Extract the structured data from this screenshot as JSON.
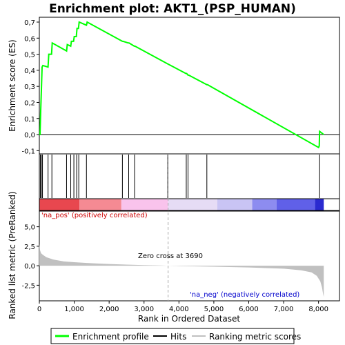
{
  "chart_data": {
    "type": "line",
    "title": "Enrichment plot: AKT1_(PSP_HUMAN)",
    "top_panel": {
      "ylabel": "Enrichment score (ES)",
      "ylim": [
        -0.12,
        0.73
      ],
      "yticks": [
        -0.1,
        0.0,
        0.1,
        0.2,
        0.3,
        0.4,
        0.5,
        0.6,
        0.7
      ],
      "ytick_labels": [
        "-0,1",
        "0,0",
        "0,1",
        "0,2",
        "0,3",
        "0,4",
        "0,5",
        "0,6",
        "0,7"
      ],
      "series": [
        {
          "name": "Enrichment profile",
          "color": "#00ff00",
          "x": [
            0,
            20,
            40,
            60,
            80,
            100,
            250,
            270,
            350,
            370,
            780,
            800,
            900,
            920,
            980,
            1000,
            1060,
            1080,
            1120,
            1140,
            1350,
            1370,
            2380,
            2400,
            2550,
            2570,
            2720,
            2740,
            3680,
            4200,
            4220,
            4260,
            4280,
            4800,
            4820,
            8000,
            8020,
            8030,
            8150
          ],
          "y": [
            0.0,
            0.0,
            0.15,
            0.28,
            0.42,
            0.43,
            0.42,
            0.5,
            0.5,
            0.57,
            0.52,
            0.56,
            0.55,
            0.58,
            0.58,
            0.61,
            0.61,
            0.66,
            0.66,
            0.7,
            0.68,
            0.7,
            0.58,
            0.58,
            0.57,
            0.57,
            0.55,
            0.55,
            0.44,
            0.38,
            0.38,
            0.37,
            0.37,
            0.31,
            0.31,
            -0.08,
            -0.07,
            0.02,
            0.0
          ]
        }
      ]
    },
    "hits": [
      30,
      60,
      90,
      250,
      360,
      780,
      900,
      990,
      1070,
      1130,
      1350,
      2380,
      2560,
      2730,
      3680,
      4210,
      4260,
      4800,
      8030
    ],
    "ranking_panel": {
      "ylabel": "Ranked list metric (PreRanked)",
      "xlabel": "Rank in Ordered Dataset",
      "xlim": [
        0,
        8600
      ],
      "ylim": [
        -4.5,
        7.0
      ],
      "yticks": [
        -2.5,
        0.0,
        2.5,
        5.0
      ],
      "ytick_labels": [
        "-2,5",
        "0,0",
        "2,5",
        "5,0"
      ],
      "xticks": [
        0,
        1000,
        2000,
        3000,
        4000,
        5000,
        6000,
        7000,
        8000
      ],
      "xtick_labels": [
        "0",
        "1,000",
        "2,000",
        "3,000",
        "4,000",
        "5,000",
        "6,000",
        "7,000",
        "8,000"
      ],
      "metric_x": [
        0,
        20,
        50,
        100,
        200,
        400,
        700,
        1000,
        1500,
        2000,
        2500,
        3000,
        3500,
        3690,
        4000,
        5000,
        6000,
        7000,
        7500,
        7800,
        7950,
        8050,
        8100,
        8130,
        8150
      ],
      "metric_y": [
        2.8,
        2.0,
        1.6,
        1.4,
        1.1,
        0.8,
        0.55,
        0.45,
        0.32,
        0.22,
        0.14,
        0.08,
        0.03,
        0.0,
        -0.04,
        -0.12,
        -0.22,
        -0.38,
        -0.58,
        -0.85,
        -1.3,
        -2.0,
        -2.8,
        -3.6,
        -4.0
      ],
      "zero_cross_x": 3690,
      "zero_cross_label": "Zero cross at 3690",
      "pos_label": "'na_pos' (positively correlated)",
      "neg_label": "'na_neg' (negatively correlated)",
      "pos_color": "#cc0000",
      "neg_color": "#0000cc"
    },
    "legend": {
      "placement": "bottom",
      "items": [
        {
          "label": "Enrichment profile",
          "color": "#00ff00"
        },
        {
          "label": "Hits",
          "color": "#000000"
        },
        {
          "label": "Ranking metric scores",
          "color": "#c0c0c0"
        }
      ]
    }
  }
}
